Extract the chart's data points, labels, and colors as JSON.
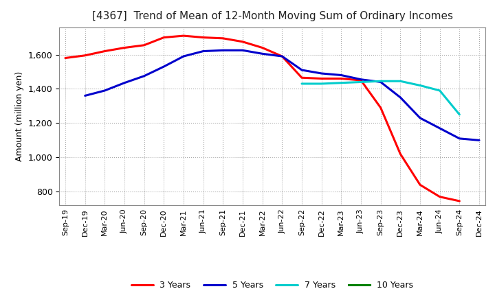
{
  "title": "[4367]  Trend of Mean of 12-Month Moving Sum of Ordinary Incomes",
  "ylabel": "Amount (million yen)",
  "ylim": [
    720,
    1760
  ],
  "yticks": [
    800,
    1000,
    1200,
    1400,
    1600
  ],
  "x_labels": [
    "Sep-19",
    "Dec-19",
    "Mar-20",
    "Jun-20",
    "Sep-20",
    "Dec-20",
    "Mar-21",
    "Jun-21",
    "Sep-21",
    "Dec-21",
    "Mar-22",
    "Jun-22",
    "Sep-22",
    "Dec-22",
    "Mar-23",
    "Jun-23",
    "Sep-23",
    "Dec-23",
    "Mar-24",
    "Jun-24",
    "Sep-24",
    "Dec-24"
  ],
  "series": [
    {
      "name": "3 Years",
      "color": "#ff0000",
      "linewidth": 2.2,
      "data": [
        1580,
        1595,
        1620,
        1640,
        1655,
        1700,
        1710,
        1700,
        1695,
        1675,
        1640,
        1590,
        1465,
        1460,
        1460,
        1450,
        1290,
        1020,
        840,
        770,
        745,
        null
      ]
    },
    {
      "name": "5 Years",
      "color": "#0000cc",
      "linewidth": 2.2,
      "data": [
        null,
        1360,
        1390,
        1435,
        1475,
        1530,
        1590,
        1620,
        1625,
        1625,
        1605,
        1590,
        1510,
        1490,
        1480,
        1455,
        1440,
        1350,
        1230,
        1170,
        1110,
        1100
      ]
    },
    {
      "name": "7 Years",
      "color": "#00cccc",
      "linewidth": 2.2,
      "data": [
        null,
        null,
        null,
        null,
        null,
        null,
        null,
        null,
        null,
        null,
        null,
        null,
        1430,
        1430,
        1435,
        1440,
        1445,
        1445,
        1420,
        1390,
        1250,
        null
      ]
    },
    {
      "name": "10 Years",
      "color": "#008000",
      "linewidth": 2.2,
      "data": [
        null,
        null,
        null,
        null,
        null,
        null,
        null,
        null,
        null,
        null,
        null,
        null,
        null,
        null,
        null,
        null,
        null,
        null,
        null,
        null,
        null,
        null
      ]
    }
  ]
}
